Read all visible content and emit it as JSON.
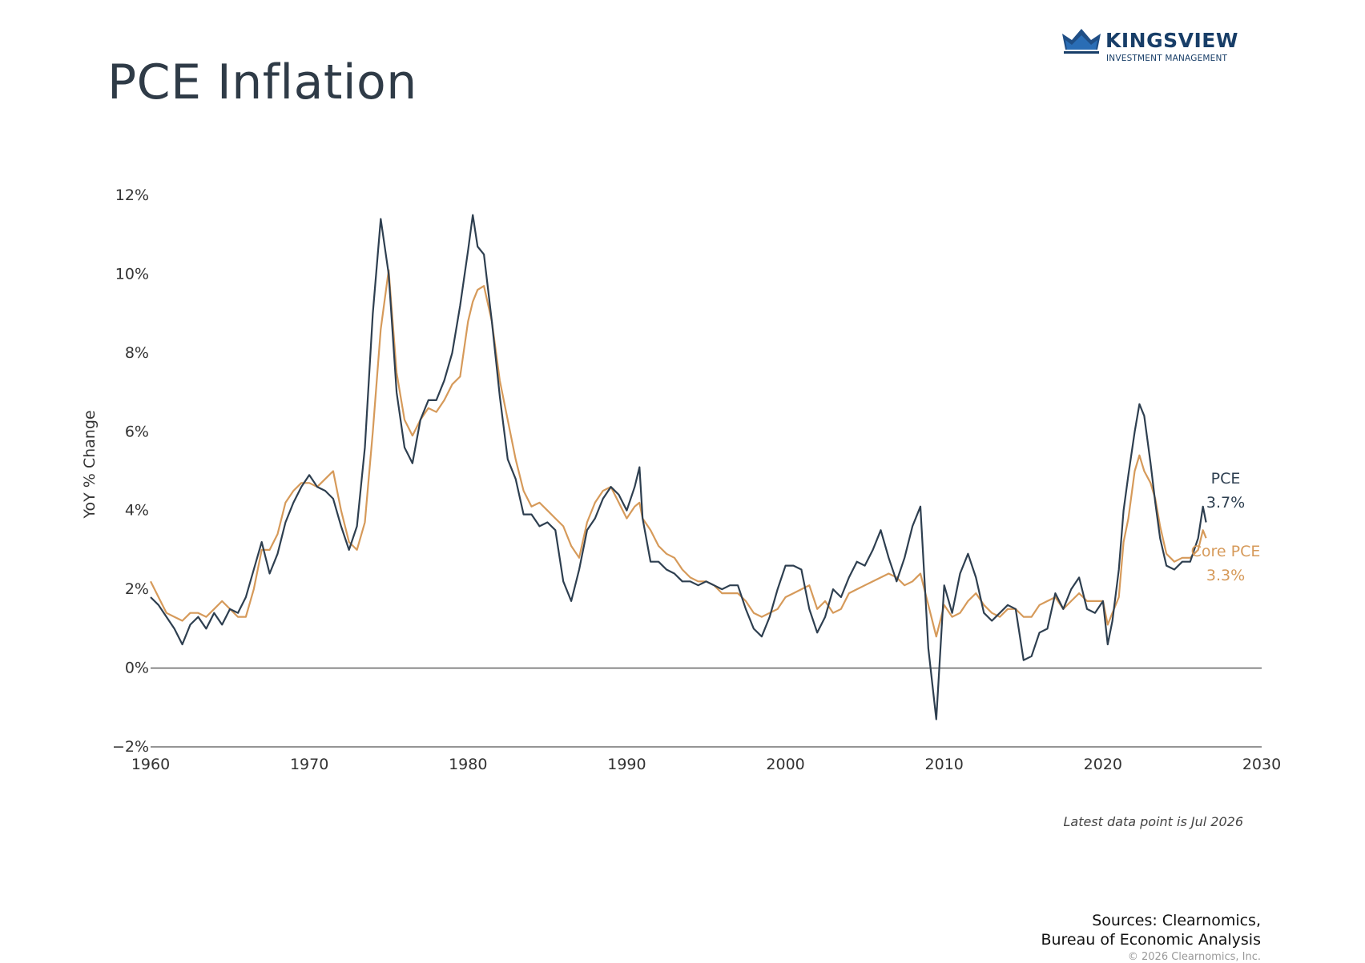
{
  "page": {
    "title": "PCE Inflation",
    "logo_name": "KINGSVIEW",
    "logo_subtitle": "INVESTMENT MANAGEMENT",
    "sources_line1": "Sources: Clearnomics,",
    "sources_line2": "Bureau of Economic Analysis",
    "copyright": "© 2026 Clearnomics, Inc.",
    "colors": {
      "brand": "#183e68",
      "pce": "#2e3f50",
      "core_pce": "#d69a5a",
      "text": "#2f3b47"
    }
  },
  "chart_data": {
    "type": "line",
    "ylabel": "YoY % Change",
    "xlim": [
      1960,
      2030
    ],
    "ylim": [
      -2,
      12
    ],
    "x_ticks": [
      1960,
      1970,
      1980,
      1990,
      2000,
      2010,
      2020,
      2030
    ],
    "x_tick_labels": [
      "1960",
      "1970",
      "1980",
      "1990",
      "2000",
      "2010",
      "2020",
      "2030"
    ],
    "y_ticks": [
      -2,
      0,
      2,
      4,
      6,
      8,
      10,
      12
    ],
    "y_tick_labels": [
      "−2%",
      "0%",
      "2%",
      "4%",
      "6%",
      "8%",
      "10%",
      "12%"
    ],
    "zero_line": true,
    "grid": false,
    "note": "Latest data point is Jul 2026",
    "series": [
      {
        "name": "PCE",
        "end_label": "3.7%",
        "color": "#2e3f50",
        "points": [
          [
            1960.0,
            1.8
          ],
          [
            1960.5,
            1.6
          ],
          [
            1961.0,
            1.3
          ],
          [
            1961.5,
            1.0
          ],
          [
            1962.0,
            0.6
          ],
          [
            1962.5,
            1.1
          ],
          [
            1963.0,
            1.3
          ],
          [
            1963.5,
            1.0
          ],
          [
            1964.0,
            1.4
          ],
          [
            1964.5,
            1.1
          ],
          [
            1965.0,
            1.5
          ],
          [
            1965.5,
            1.4
          ],
          [
            1966.0,
            1.8
          ],
          [
            1966.5,
            2.5
          ],
          [
            1967.0,
            3.2
          ],
          [
            1967.5,
            2.4
          ],
          [
            1968.0,
            2.9
          ],
          [
            1968.5,
            3.7
          ],
          [
            1969.0,
            4.2
          ],
          [
            1969.5,
            4.6
          ],
          [
            1970.0,
            4.9
          ],
          [
            1970.5,
            4.6
          ],
          [
            1971.0,
            4.5
          ],
          [
            1971.5,
            4.3
          ],
          [
            1972.0,
            3.6
          ],
          [
            1972.5,
            3.0
          ],
          [
            1973.0,
            3.6
          ],
          [
            1973.5,
            5.6
          ],
          [
            1974.0,
            9.0
          ],
          [
            1974.5,
            11.4
          ],
          [
            1975.0,
            10.0
          ],
          [
            1975.5,
            7.0
          ],
          [
            1976.0,
            5.6
          ],
          [
            1976.5,
            5.2
          ],
          [
            1977.0,
            6.3
          ],
          [
            1977.5,
            6.8
          ],
          [
            1978.0,
            6.8
          ],
          [
            1978.5,
            7.3
          ],
          [
            1979.0,
            8.0
          ],
          [
            1979.5,
            9.2
          ],
          [
            1980.0,
            10.6
          ],
          [
            1980.3,
            11.5
          ],
          [
            1980.6,
            10.7
          ],
          [
            1981.0,
            10.5
          ],
          [
            1981.5,
            8.8
          ],
          [
            1982.0,
            6.9
          ],
          [
            1982.5,
            5.3
          ],
          [
            1983.0,
            4.8
          ],
          [
            1983.5,
            3.9
          ],
          [
            1984.0,
            3.9
          ],
          [
            1984.5,
            3.6
          ],
          [
            1985.0,
            3.7
          ],
          [
            1985.5,
            3.5
          ],
          [
            1986.0,
            2.2
          ],
          [
            1986.5,
            1.7
          ],
          [
            1987.0,
            2.5
          ],
          [
            1987.5,
            3.5
          ],
          [
            1988.0,
            3.8
          ],
          [
            1988.5,
            4.3
          ],
          [
            1989.0,
            4.6
          ],
          [
            1989.5,
            4.4
          ],
          [
            1990.0,
            4.0
          ],
          [
            1990.5,
            4.6
          ],
          [
            1990.8,
            5.1
          ],
          [
            1991.0,
            3.8
          ],
          [
            1991.5,
            2.7
          ],
          [
            1992.0,
            2.7
          ],
          [
            1992.5,
            2.5
          ],
          [
            1993.0,
            2.4
          ],
          [
            1993.5,
            2.2
          ],
          [
            1994.0,
            2.2
          ],
          [
            1994.5,
            2.1
          ],
          [
            1995.0,
            2.2
          ],
          [
            1995.5,
            2.1
          ],
          [
            1996.0,
            2.0
          ],
          [
            1996.5,
            2.1
          ],
          [
            1997.0,
            2.1
          ],
          [
            1997.5,
            1.5
          ],
          [
            1998.0,
            1.0
          ],
          [
            1998.5,
            0.8
          ],
          [
            1999.0,
            1.3
          ],
          [
            1999.5,
            2.0
          ],
          [
            2000.0,
            2.6
          ],
          [
            2000.5,
            2.6
          ],
          [
            2001.0,
            2.5
          ],
          [
            2001.5,
            1.5
          ],
          [
            2002.0,
            0.9
          ],
          [
            2002.5,
            1.3
          ],
          [
            2003.0,
            2.0
          ],
          [
            2003.5,
            1.8
          ],
          [
            2004.0,
            2.3
          ],
          [
            2004.5,
            2.7
          ],
          [
            2005.0,
            2.6
          ],
          [
            2005.5,
            3.0
          ],
          [
            2006.0,
            3.5
          ],
          [
            2006.5,
            2.8
          ],
          [
            2007.0,
            2.2
          ],
          [
            2007.5,
            2.8
          ],
          [
            2008.0,
            3.6
          ],
          [
            2008.5,
            4.1
          ],
          [
            2009.0,
            0.5
          ],
          [
            2009.5,
            -1.3
          ],
          [
            2010.0,
            2.1
          ],
          [
            2010.5,
            1.4
          ],
          [
            2011.0,
            2.4
          ],
          [
            2011.5,
            2.9
          ],
          [
            2012.0,
            2.3
          ],
          [
            2012.5,
            1.4
          ],
          [
            2013.0,
            1.2
          ],
          [
            2013.5,
            1.4
          ],
          [
            2014.0,
            1.6
          ],
          [
            2014.5,
            1.5
          ],
          [
            2015.0,
            0.2
          ],
          [
            2015.5,
            0.3
          ],
          [
            2016.0,
            0.9
          ],
          [
            2016.5,
            1.0
          ],
          [
            2017.0,
            1.9
          ],
          [
            2017.5,
            1.5
          ],
          [
            2018.0,
            2.0
          ],
          [
            2018.5,
            2.3
          ],
          [
            2019.0,
            1.5
          ],
          [
            2019.5,
            1.4
          ],
          [
            2020.0,
            1.7
          ],
          [
            2020.3,
            0.6
          ],
          [
            2020.6,
            1.2
          ],
          [
            2021.0,
            2.5
          ],
          [
            2021.3,
            4.0
          ],
          [
            2021.6,
            4.9
          ],
          [
            2022.0,
            6.0
          ],
          [
            2022.3,
            6.7
          ],
          [
            2022.6,
            6.4
          ],
          [
            2023.0,
            5.2
          ],
          [
            2023.3,
            4.2
          ],
          [
            2023.6,
            3.3
          ],
          [
            2024.0,
            2.6
          ],
          [
            2024.5,
            2.5
          ],
          [
            2025.0,
            2.7
          ],
          [
            2025.5,
            2.7
          ],
          [
            2026.0,
            3.3
          ],
          [
            2026.3,
            4.1
          ],
          [
            2026.5,
            3.7
          ]
        ]
      },
      {
        "name": "Core PCE",
        "end_label": "3.3%",
        "color": "#d69a5a",
        "points": [
          [
            1960.0,
            2.2
          ],
          [
            1960.5,
            1.8
          ],
          [
            1961.0,
            1.4
          ],
          [
            1961.5,
            1.3
          ],
          [
            1962.0,
            1.2
          ],
          [
            1962.5,
            1.4
          ],
          [
            1963.0,
            1.4
          ],
          [
            1963.5,
            1.3
          ],
          [
            1964.0,
            1.5
          ],
          [
            1964.5,
            1.7
          ],
          [
            1965.0,
            1.5
          ],
          [
            1965.5,
            1.3
          ],
          [
            1966.0,
            1.3
          ],
          [
            1966.5,
            2.0
          ],
          [
            1967.0,
            3.0
          ],
          [
            1967.5,
            3.0
          ],
          [
            1968.0,
            3.4
          ],
          [
            1968.5,
            4.2
          ],
          [
            1969.0,
            4.5
          ],
          [
            1969.5,
            4.7
          ],
          [
            1970.0,
            4.7
          ],
          [
            1970.5,
            4.6
          ],
          [
            1971.0,
            4.8
          ],
          [
            1971.5,
            5.0
          ],
          [
            1972.0,
            4.0
          ],
          [
            1972.5,
            3.2
          ],
          [
            1973.0,
            3.0
          ],
          [
            1973.5,
            3.7
          ],
          [
            1974.0,
            6.0
          ],
          [
            1974.5,
            8.6
          ],
          [
            1975.0,
            10.1
          ],
          [
            1975.5,
            7.5
          ],
          [
            1976.0,
            6.3
          ],
          [
            1976.5,
            5.9
          ],
          [
            1977.0,
            6.3
          ],
          [
            1977.5,
            6.6
          ],
          [
            1978.0,
            6.5
          ],
          [
            1978.5,
            6.8
          ],
          [
            1979.0,
            7.2
          ],
          [
            1979.5,
            7.4
          ],
          [
            1980.0,
            8.8
          ],
          [
            1980.3,
            9.3
          ],
          [
            1980.6,
            9.6
          ],
          [
            1981.0,
            9.7
          ],
          [
            1981.5,
            8.8
          ],
          [
            1982.0,
            7.3
          ],
          [
            1982.5,
            6.3
          ],
          [
            1983.0,
            5.3
          ],
          [
            1983.5,
            4.5
          ],
          [
            1984.0,
            4.1
          ],
          [
            1984.5,
            4.2
          ],
          [
            1985.0,
            4.0
          ],
          [
            1985.5,
            3.8
          ],
          [
            1986.0,
            3.6
          ],
          [
            1986.5,
            3.1
          ],
          [
            1987.0,
            2.8
          ],
          [
            1987.5,
            3.7
          ],
          [
            1988.0,
            4.2
          ],
          [
            1988.5,
            4.5
          ],
          [
            1989.0,
            4.6
          ],
          [
            1989.5,
            4.2
          ],
          [
            1990.0,
            3.8
          ],
          [
            1990.5,
            4.1
          ],
          [
            1990.8,
            4.2
          ],
          [
            1991.0,
            3.8
          ],
          [
            1991.5,
            3.5
          ],
          [
            1992.0,
            3.1
          ],
          [
            1992.5,
            2.9
          ],
          [
            1993.0,
            2.8
          ],
          [
            1993.5,
            2.5
          ],
          [
            1994.0,
            2.3
          ],
          [
            1994.5,
            2.2
          ],
          [
            1995.0,
            2.2
          ],
          [
            1995.5,
            2.1
          ],
          [
            1996.0,
            1.9
          ],
          [
            1996.5,
            1.9
          ],
          [
            1997.0,
            1.9
          ],
          [
            1997.5,
            1.7
          ],
          [
            1998.0,
            1.4
          ],
          [
            1998.5,
            1.3
          ],
          [
            1999.0,
            1.4
          ],
          [
            1999.5,
            1.5
          ],
          [
            2000.0,
            1.8
          ],
          [
            2000.5,
            1.9
          ],
          [
            2001.0,
            2.0
          ],
          [
            2001.5,
            2.1
          ],
          [
            2002.0,
            1.5
          ],
          [
            2002.5,
            1.7
          ],
          [
            2003.0,
            1.4
          ],
          [
            2003.5,
            1.5
          ],
          [
            2004.0,
            1.9
          ],
          [
            2004.5,
            2.0
          ],
          [
            2005.0,
            2.1
          ],
          [
            2005.5,
            2.2
          ],
          [
            2006.0,
            2.3
          ],
          [
            2006.5,
            2.4
          ],
          [
            2007.0,
            2.3
          ],
          [
            2007.5,
            2.1
          ],
          [
            2008.0,
            2.2
          ],
          [
            2008.5,
            2.4
          ],
          [
            2009.0,
            1.6
          ],
          [
            2009.5,
            0.8
          ],
          [
            2010.0,
            1.6
          ],
          [
            2010.5,
            1.3
          ],
          [
            2011.0,
            1.4
          ],
          [
            2011.5,
            1.7
          ],
          [
            2012.0,
            1.9
          ],
          [
            2012.5,
            1.6
          ],
          [
            2013.0,
            1.4
          ],
          [
            2013.5,
            1.3
          ],
          [
            2014.0,
            1.5
          ],
          [
            2014.5,
            1.5
          ],
          [
            2015.0,
            1.3
          ],
          [
            2015.5,
            1.3
          ],
          [
            2016.0,
            1.6
          ],
          [
            2016.5,
            1.7
          ],
          [
            2017.0,
            1.8
          ],
          [
            2017.5,
            1.5
          ],
          [
            2018.0,
            1.7
          ],
          [
            2018.5,
            1.9
          ],
          [
            2019.0,
            1.7
          ],
          [
            2019.5,
            1.7
          ],
          [
            2020.0,
            1.7
          ],
          [
            2020.3,
            1.1
          ],
          [
            2020.6,
            1.4
          ],
          [
            2021.0,
            1.8
          ],
          [
            2021.3,
            3.2
          ],
          [
            2021.6,
            3.8
          ],
          [
            2022.0,
            5.0
          ],
          [
            2022.3,
            5.4
          ],
          [
            2022.6,
            5.0
          ],
          [
            2023.0,
            4.7
          ],
          [
            2023.3,
            4.3
          ],
          [
            2023.6,
            3.6
          ],
          [
            2024.0,
            2.9
          ],
          [
            2024.5,
            2.7
          ],
          [
            2025.0,
            2.8
          ],
          [
            2025.5,
            2.8
          ],
          [
            2026.0,
            3.0
          ],
          [
            2026.3,
            3.5
          ],
          [
            2026.5,
            3.3
          ]
        ]
      }
    ]
  }
}
